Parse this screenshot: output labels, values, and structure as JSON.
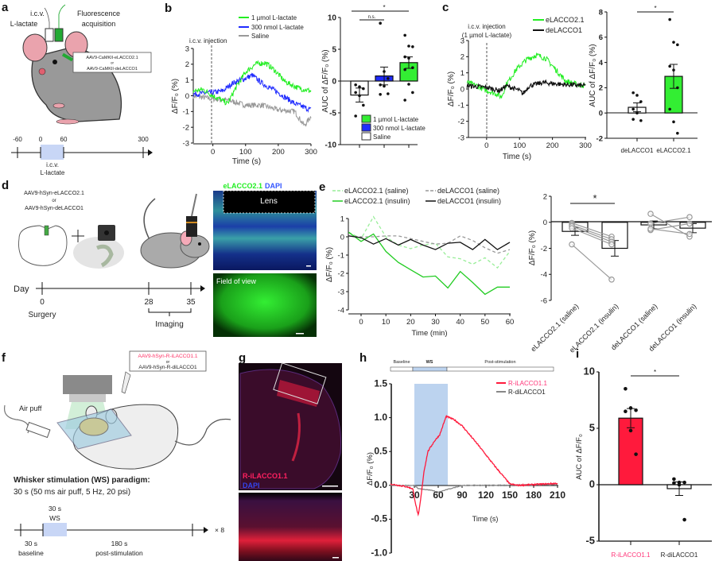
{
  "figure": {
    "panel_labels": [
      "a",
      "b",
      "c",
      "d",
      "e",
      "f",
      "g",
      "h",
      "i"
    ],
    "a": {
      "icv": "i.c.v.",
      "lactate": "L-lactate",
      "fluor1": "Fluorescence",
      "fluor2": "acquisition",
      "virus1": "AAV9-CaMKII-eLACCO2.1",
      "or": "or",
      "virus2": "AAV9-CaMKII-deLACCO1",
      "timeline_ticks": [
        "-60",
        "0",
        "60",
        "300"
      ],
      "timeline_icv": "i.c.v.",
      "timeline_lactate": "L-lactate"
    },
    "b": {
      "injection": "i.c.v. injection"
    },
    "c": {
      "injection1": "i.c.v. injection",
      "injection2": "(1 µmol L-lactate)"
    },
    "d": {
      "virus1": "AAV9-hSyn-eLACCO2.1",
      "or": "or",
      "virus2": "AAV9-hSyn-deLACCO1",
      "day": "Day",
      "ticks": [
        "0",
        "28",
        "35"
      ],
      "surgery": "Surgery",
      "imaging": "Imaging",
      "image_title_green": "eLACCO2.1",
      "image_title_blue": "DAPI",
      "lens": "Lens",
      "field_of_view": "Field of view"
    },
    "f": {
      "virus1": "AAV9-hSyn-R-iLACCO1.1",
      "or": "or",
      "virus2": "AAV9-hSyn-R-diLACCO1",
      "air_puff": "Air puff",
      "paradigm_title": "Whisker stimulation (WS) paradigm:",
      "paradigm_desc": "30 s (50 ms air puff, 5 Hz, 20 psi)",
      "ws_dur": "30 s",
      "ws": "WS",
      "baseline_dur": "30 s",
      "baseline": "baseline",
      "post_dur": "180 s",
      "post": "post-stimulation",
      "repeat": "× 8"
    },
    "g": {
      "label_red": "R-iLACCO1.1",
      "label_blue": "DAPI"
    },
    "h": {
      "phase_baseline": "Baseline",
      "phase_ws": "WS",
      "phase_post": "Post-stimulation"
    }
  },
  "colors": {
    "green": "#22ee22",
    "blue": "#1f2bff",
    "gray": "#999999",
    "black": "#111111",
    "light_green": "#99ee99",
    "red": "#ff1a3c",
    "ws_blue": "#bcd3ef",
    "red_label": "#ff3377"
  },
  "chart_data": [
    {
      "id": "b-trace",
      "type": "line",
      "xlabel": "Time (s)",
      "ylabel": "ΔF/F₀ (%)",
      "xlim": [
        -60,
        300
      ],
      "ylim": [
        -3,
        3
      ],
      "xticks": [
        "0",
        "100",
        "200",
        "300"
      ],
      "yticks": [
        "-3",
        "-2",
        "-1",
        "0",
        "1",
        "2",
        "3"
      ],
      "series": [
        {
          "name": "1 µmol L-lactate",
          "color": "#22ee22",
          "points": [
            [
              -60,
              0.3
            ],
            [
              -30,
              0.4
            ],
            [
              0,
              0
            ],
            [
              20,
              -0.2
            ],
            [
              45,
              -0.5
            ],
            [
              70,
              0.5
            ],
            [
              100,
              1.5
            ],
            [
              130,
              2.0
            ],
            [
              160,
              2.1
            ],
            [
              190,
              1.6
            ],
            [
              220,
              0.9
            ],
            [
              260,
              0.5
            ],
            [
              300,
              0.3
            ]
          ]
        },
        {
          "name": "300 nmol L-lactate",
          "color": "#1f2bff",
          "points": [
            [
              -60,
              0.1
            ],
            [
              0,
              0.2
            ],
            [
              30,
              0.3
            ],
            [
              60,
              0.8
            ],
            [
              100,
              1.1
            ],
            [
              120,
              1.3
            ],
            [
              150,
              0.8
            ],
            [
              200,
              0.2
            ],
            [
              250,
              -0.5
            ],
            [
              300,
              -0.9
            ]
          ]
        },
        {
          "name": "Saline",
          "color": "#999999",
          "points": [
            [
              -60,
              0
            ],
            [
              0,
              -0.2
            ],
            [
              50,
              -0.3
            ],
            [
              100,
              -0.6
            ],
            [
              150,
              -0.6
            ],
            [
              200,
              -0.9
            ],
            [
              250,
              -1.0
            ],
            [
              280,
              -1.9
            ],
            [
              300,
              -1.3
            ]
          ]
        }
      ]
    },
    {
      "id": "b-auc",
      "type": "bar",
      "ylabel": "AUC of ΔF/F₀ (%)",
      "ylim": [
        -10,
        10
      ],
      "yticks": [
        "-10",
        "-5",
        "0",
        "5",
        "10"
      ],
      "categories": [
        "Saline",
        "300 nmol L-lactate",
        "1 µmol L-lactate"
      ],
      "values": [
        -2.2,
        0.8,
        2.9
      ],
      "sem": [
        1.1,
        1.4,
        0.9
      ],
      "bar_colors": [
        "#ffffff",
        "#1f2bff",
        "#33ee33"
      ],
      "points": [
        [
          -0.6,
          -0.9,
          -1.2,
          -1.8,
          -2.3,
          -3.8,
          -5.5
        ],
        [
          9.1,
          1.5,
          0.4,
          -0.6,
          -0.8,
          -2.0,
          -2.1
        ],
        [
          7.2,
          5.5,
          5.4,
          3.8,
          3.6,
          2.1,
          1.8,
          -0.5,
          -1.8,
          -3.0
        ]
      ],
      "legend": [
        "1 µmol L-lactate",
        "300 nmol L-lactate",
        "Saline"
      ],
      "significance": [
        {
          "label": "n.s.",
          "from": 0,
          "to": 1
        },
        {
          "label": "*",
          "from": 0,
          "to": 2
        }
      ]
    },
    {
      "id": "c-trace",
      "type": "line",
      "xlabel": "Time (s)",
      "ylabel": "ΔF/F₀ (%)",
      "xlim": [
        -60,
        300
      ],
      "ylim": [
        -3,
        3
      ],
      "xticks": [
        "0",
        "100",
        "200",
        "300"
      ],
      "yticks": [
        "-3",
        "-2",
        "-1",
        "0",
        "1",
        "2",
        "3"
      ],
      "series": [
        {
          "name": "eLACCO2.1",
          "color": "#22ee22",
          "points": [
            [
              -60,
              0.4
            ],
            [
              -30,
              0.2
            ],
            [
              0,
              -0.1
            ],
            [
              30,
              -0.3
            ],
            [
              45,
              -0.5
            ],
            [
              60,
              0.3
            ],
            [
              90,
              1.2
            ],
            [
              120,
              1.8
            ],
            [
              150,
              2.1
            ],
            [
              180,
              1.9
            ],
            [
              210,
              1.2
            ],
            [
              240,
              0.5
            ],
            [
              270,
              0.3
            ],
            [
              300,
              0.2
            ]
          ]
        },
        {
          "name": "deLACCO1",
          "color": "#111111",
          "points": [
            [
              -60,
              0.2
            ],
            [
              0,
              0.1
            ],
            [
              40,
              -0.1
            ],
            [
              60,
              0.2
            ],
            [
              100,
              -0.1
            ],
            [
              110,
              -0.3
            ],
            [
              130,
              0.2
            ],
            [
              170,
              0.4
            ],
            [
              220,
              0.3
            ],
            [
              300,
              0.2
            ]
          ]
        }
      ]
    },
    {
      "id": "c-auc",
      "type": "bar",
      "ylabel": "AUC of ΔF/F₀ (%)",
      "ylim": [
        -2,
        8
      ],
      "yticks": [
        "-2",
        "0",
        "2",
        "4",
        "6",
        "8"
      ],
      "categories": [
        "deLACCO1",
        "eLACCO2.1"
      ],
      "values": [
        0.45,
        2.9
      ],
      "sem": [
        0.35,
        0.95
      ],
      "bar_colors": [
        "#ffffff",
        "#33ee33"
      ],
      "points": [
        [
          1.6,
          1.4,
          0.9,
          0.3,
          0.0,
          -0.6,
          -0.5
        ],
        [
          7.4,
          5.6,
          5.4,
          3.7,
          3.4,
          2.0,
          0.3,
          -0.7,
          -1.6
        ]
      ],
      "significance": [
        {
          "label": "*",
          "from": 0,
          "to": 1
        }
      ]
    },
    {
      "id": "e-trace",
      "type": "line",
      "xlabel": "Time (min)",
      "ylabel": "ΔF/F₀ (%)",
      "xlim": [
        -5,
        60
      ],
      "ylim": [
        -4,
        1
      ],
      "xticks": [
        "0",
        "10",
        "20",
        "30",
        "40",
        "50",
        "60"
      ],
      "yticks": [
        "-4",
        "-3",
        "-2",
        "-1",
        "0",
        "1"
      ],
      "x": [
        -5,
        0,
        5,
        10,
        15,
        20,
        25,
        30,
        35,
        40,
        45,
        50,
        55,
        60
      ],
      "series": [
        {
          "name": "eLACCO2.1 (saline)",
          "color": "#99ee99",
          "dashed": true,
          "values": [
            0.25,
            -0.1,
            1.1,
            0.0,
            -0.45,
            -0.65,
            -0.45,
            -0.35,
            -1.1,
            -1.2,
            -1.5,
            -1.15,
            -1.7,
            -0.8
          ]
        },
        {
          "name": "eLACCO2.1 (insulin)",
          "color": "#22cc22",
          "dashed": false,
          "values": [
            0.25,
            -0.25,
            0.15,
            -0.8,
            -1.4,
            -1.8,
            -2.2,
            -2.15,
            -2.8,
            -1.9,
            -2.5,
            -3.15,
            -2.75,
            -2.75
          ]
        },
        {
          "name": "deLACCO1 (saline)",
          "color": "#999999",
          "dashed": true,
          "values": [
            0.05,
            0.0,
            0.0,
            0.05,
            0.05,
            -0.1,
            -0.25,
            -0.4,
            -0.35,
            0.05,
            -0.2,
            -0.6,
            -0.9,
            -0.7
          ]
        },
        {
          "name": "deLACCO1 (insulin)",
          "color": "#111111",
          "dashed": false,
          "values": [
            0.05,
            -0.05,
            -0.4,
            -0.1,
            -0.45,
            -0.15,
            -0.45,
            -0.7,
            -0.35,
            -0.3,
            -0.7,
            -0.15,
            -0.7,
            -0.3
          ]
        }
      ]
    },
    {
      "id": "e-bar",
      "type": "bar",
      "ylabel": "ΔF/F₀ (%)",
      "ylim": [
        -6,
        2
      ],
      "yticks": [
        "-6",
        "-4",
        "-2",
        "0",
        "2"
      ],
      "categories": [
        "eLACCO2.1 (saline)",
        "eLACCO2.1 (insulin)",
        "deLACCO1 (saline)",
        "deLACCO1 (insulin)"
      ],
      "values": [
        -0.7,
        -2.0,
        -0.2,
        -0.45
      ],
      "sem": [
        0.3,
        0.6,
        0.3,
        0.35
      ],
      "bar_colors": [
        "#ffffff",
        "#ffffff",
        "#ffffff",
        "#ffffff"
      ],
      "paired_points": [
        {
          "from": 0,
          "to": 1,
          "pairs": [
            [
              -0.05,
              -1.1
            ],
            [
              -0.2,
              -1.3
            ],
            [
              -0.3,
              -1.5
            ],
            [
              -0.45,
              -1.7
            ],
            [
              -1.7,
              -4.4
            ]
          ]
        },
        {
          "from": 2,
          "to": 3,
          "pairs": [
            [
              0.65,
              -1.1
            ],
            [
              -0.1,
              0.4
            ],
            [
              -0.6,
              -0.1
            ],
            [
              -0.5,
              -0.9
            ]
          ]
        }
      ],
      "significance": [
        {
          "label": "*",
          "from": 0,
          "to": 1
        }
      ]
    },
    {
      "id": "h-trace",
      "type": "line",
      "xlabel": "Time (s)",
      "ylabel": "ΔF/F₀ (%)",
      "xlim": [
        0,
        210
      ],
      "ylim": [
        -1,
        1.5
      ],
      "xticks": [
        "30",
        "60",
        "90",
        "120",
        "150",
        "180",
        "210"
      ],
      "yticks": [
        "-1.0",
        "-0.5",
        "0.0",
        "0.5",
        "1.0",
        "1.5"
      ],
      "stimulation_window": [
        30,
        72
      ],
      "series": [
        {
          "name": "R-iLACCO1.1",
          "color": "#ff1a3c",
          "points": [
            [
              0,
              0.02
            ],
            [
              10,
              0.0
            ],
            [
              20,
              -0.02
            ],
            [
              28,
              -0.05
            ],
            [
              32,
              -0.3
            ],
            [
              35,
              -0.45
            ],
            [
              38,
              -0.2
            ],
            [
              42,
              0.2
            ],
            [
              47,
              0.5
            ],
            [
              55,
              0.65
            ],
            [
              62,
              0.75
            ],
            [
              70,
              1.02
            ],
            [
              80,
              0.97
            ],
            [
              90,
              0.88
            ],
            [
              110,
              0.6
            ],
            [
              130,
              0.3
            ],
            [
              150,
              0.02
            ],
            [
              160,
              0.0
            ],
            [
              210,
              0.03
            ]
          ]
        },
        {
          "name": "R-diLACCO1",
          "color": "#888888",
          "points": [
            [
              0,
              0
            ],
            [
              30,
              0
            ],
            [
              35,
              -0.05
            ],
            [
              50,
              -0.07
            ],
            [
              60,
              -0.1
            ],
            [
              75,
              -0.05
            ],
            [
              90,
              0.0
            ],
            [
              210,
              0.01
            ]
          ]
        }
      ]
    },
    {
      "id": "i-auc",
      "type": "bar",
      "ylabel": "AUC of ΔF/F₀",
      "ylim": [
        -5,
        10
      ],
      "yticks": [
        "-5",
        "0",
        "5",
        "10"
      ],
      "categories": [
        "R-iLACCO1.1",
        "R-diLACCO1"
      ],
      "values": [
        5.9,
        -0.35
      ],
      "sem": [
        0.85,
        0.6
      ],
      "bar_colors": [
        "#ff1a3c",
        "#ffffff"
      ],
      "points": [
        [
          8.5,
          6.8,
          6.6,
          6.5,
          4.8,
          2.7
        ],
        [
          0.5,
          0.2,
          0.2,
          0.15,
          0.0,
          -3.1
        ]
      ],
      "significance": [
        {
          "label": "*",
          "from": 0,
          "to": 1
        }
      ]
    }
  ]
}
